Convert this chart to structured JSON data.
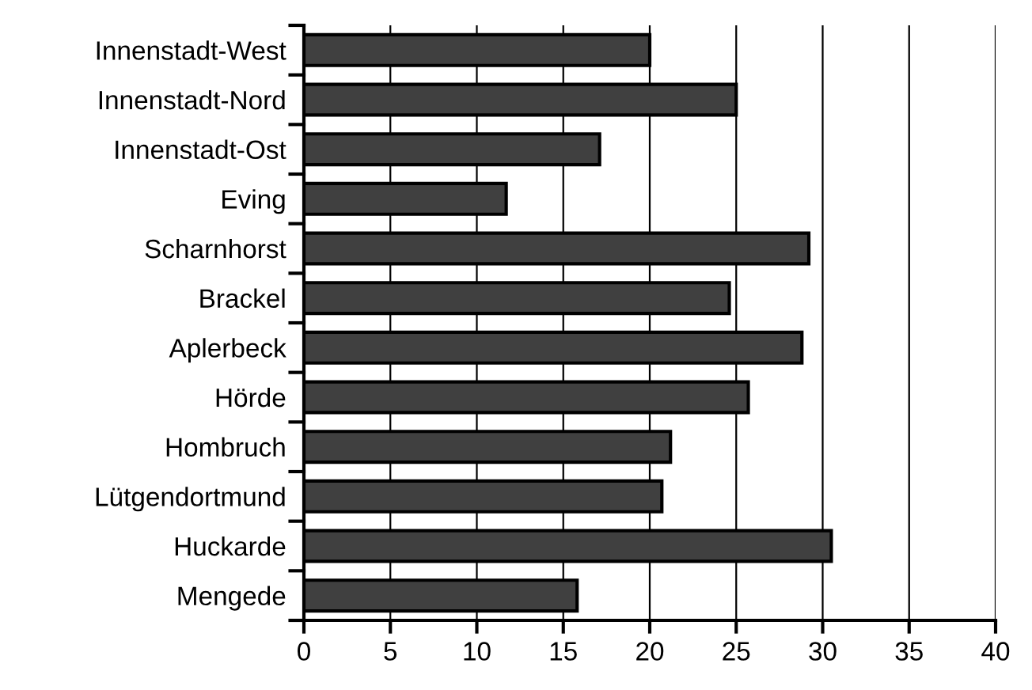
{
  "chart_data": {
    "type": "bar",
    "orientation": "horizontal",
    "categories": [
      "Innenstadt-West",
      "Innenstadt-Nord",
      "Innenstadt-Ost",
      "Eving",
      "Scharnhorst",
      "Brackel",
      "Aplerbeck",
      "Hörde",
      "Hombruch",
      "Lütgendortmund",
      "Huckarde",
      "Mengede"
    ],
    "values": [
      20.0,
      25.0,
      17.1,
      11.7,
      29.2,
      24.6,
      28.8,
      25.7,
      21.2,
      20.7,
      30.5,
      15.8
    ],
    "color": "#404040",
    "xlim": [
      0,
      40
    ],
    "xticks": [
      0,
      5,
      10,
      15,
      20,
      25,
      30,
      35,
      40
    ],
    "grid": "x"
  }
}
